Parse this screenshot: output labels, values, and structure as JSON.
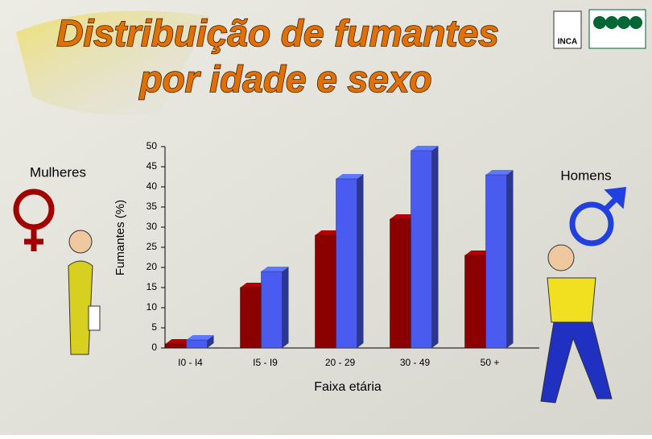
{
  "chart_data": {
    "type": "bar3d",
    "title": [
      "Distribuição de fumantes",
      "por idade e sexo"
    ],
    "logo": "INCA",
    "categories": [
      "I0 - I4",
      "I5 - I9",
      "20 - 29",
      "30 - 49",
      "50 +"
    ],
    "series": [
      {
        "name": "Mulheres",
        "color": "#8b0000",
        "values": [
          1,
          15,
          28,
          32,
          23
        ]
      },
      {
        "name": "Homens",
        "color": "#4a5cf0",
        "values": [
          2,
          19,
          42,
          49,
          43
        ]
      }
    ],
    "ylabel": "Fumantes (%)",
    "xlabel": "Faixa etária",
    "ylim": [
      0,
      50
    ],
    "yticks": [
      0,
      5,
      10,
      15,
      20,
      25,
      30,
      35,
      40,
      45,
      50
    ]
  }
}
